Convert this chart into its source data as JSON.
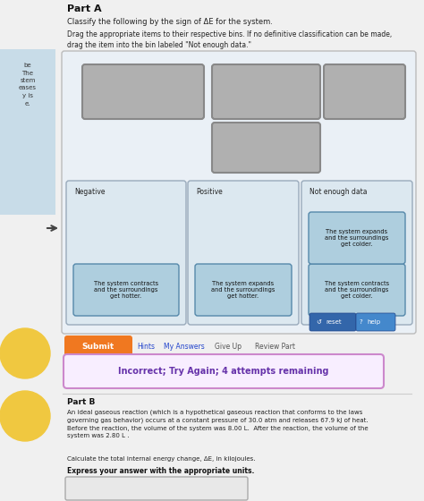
{
  "bg_color": "#f0f0f0",
  "left_strip_color": "#c8dce8",
  "left_strip_text": "be\nThe\nstem\neases\ny is\ne.",
  "part_a_title": "Part A",
  "instruction1": "Classify the following by the sign of ΔE for the system.",
  "instruction2": "Drag the appropriate items to their respective bins. If no definitive classification can be made,\ndrag the item into the bin labeled \"Not enough data.\"",
  "outer_box_color": "#eaf0f6",
  "outer_box_edge": "#bbbbbb",
  "drag_box_color": "#b0b0b0",
  "drag_box_edge": "#888888",
  "bin_bg": "#dce8f0",
  "bin_edge": "#99aabb",
  "card_bg": "#aecede",
  "card_edge": "#5588aa",
  "bins": [
    {
      "label": "Negative",
      "cards": [
        "The system contracts\nand the surroundings\nget hotter."
      ]
    },
    {
      "label": "Positive",
      "cards": [
        "The system expands\nand the surroundings\nget hotter."
      ]
    },
    {
      "label": "Not enough data",
      "cards": [
        "The system expands\nand the surroundings\nget colder.",
        "The system contracts\nand the surroundings\nget colder."
      ]
    }
  ],
  "reset_color": "#3366aa",
  "help_color": "#4488cc",
  "submit_color": "#f07820",
  "error_bg": "#f8eeff",
  "error_edge": "#cc88cc",
  "error_text_color": "#6633aa",
  "error_text": "Incorrect; Try Again; 4 attempts remaining",
  "part_b_title": "Part B",
  "part_b_body": "An ideal gaseous reaction (which is a hypothetical gaseous reaction that conforms to the laws\ngoverning gas behavior) occurs at a constant pressure of 30.0 atm and releases 67.9 kJ of heat.\nBefore the reaction, the volume of the system was 8.00 L.  After the reaction, the volume of the\nsystem was 2.80 L .",
  "part_b_calc": "Calculate the total internal energy change, ΔE, in kilojoules.",
  "part_b_express": "Express your answer with the appropriate units.",
  "circle_color": "#f0c840"
}
